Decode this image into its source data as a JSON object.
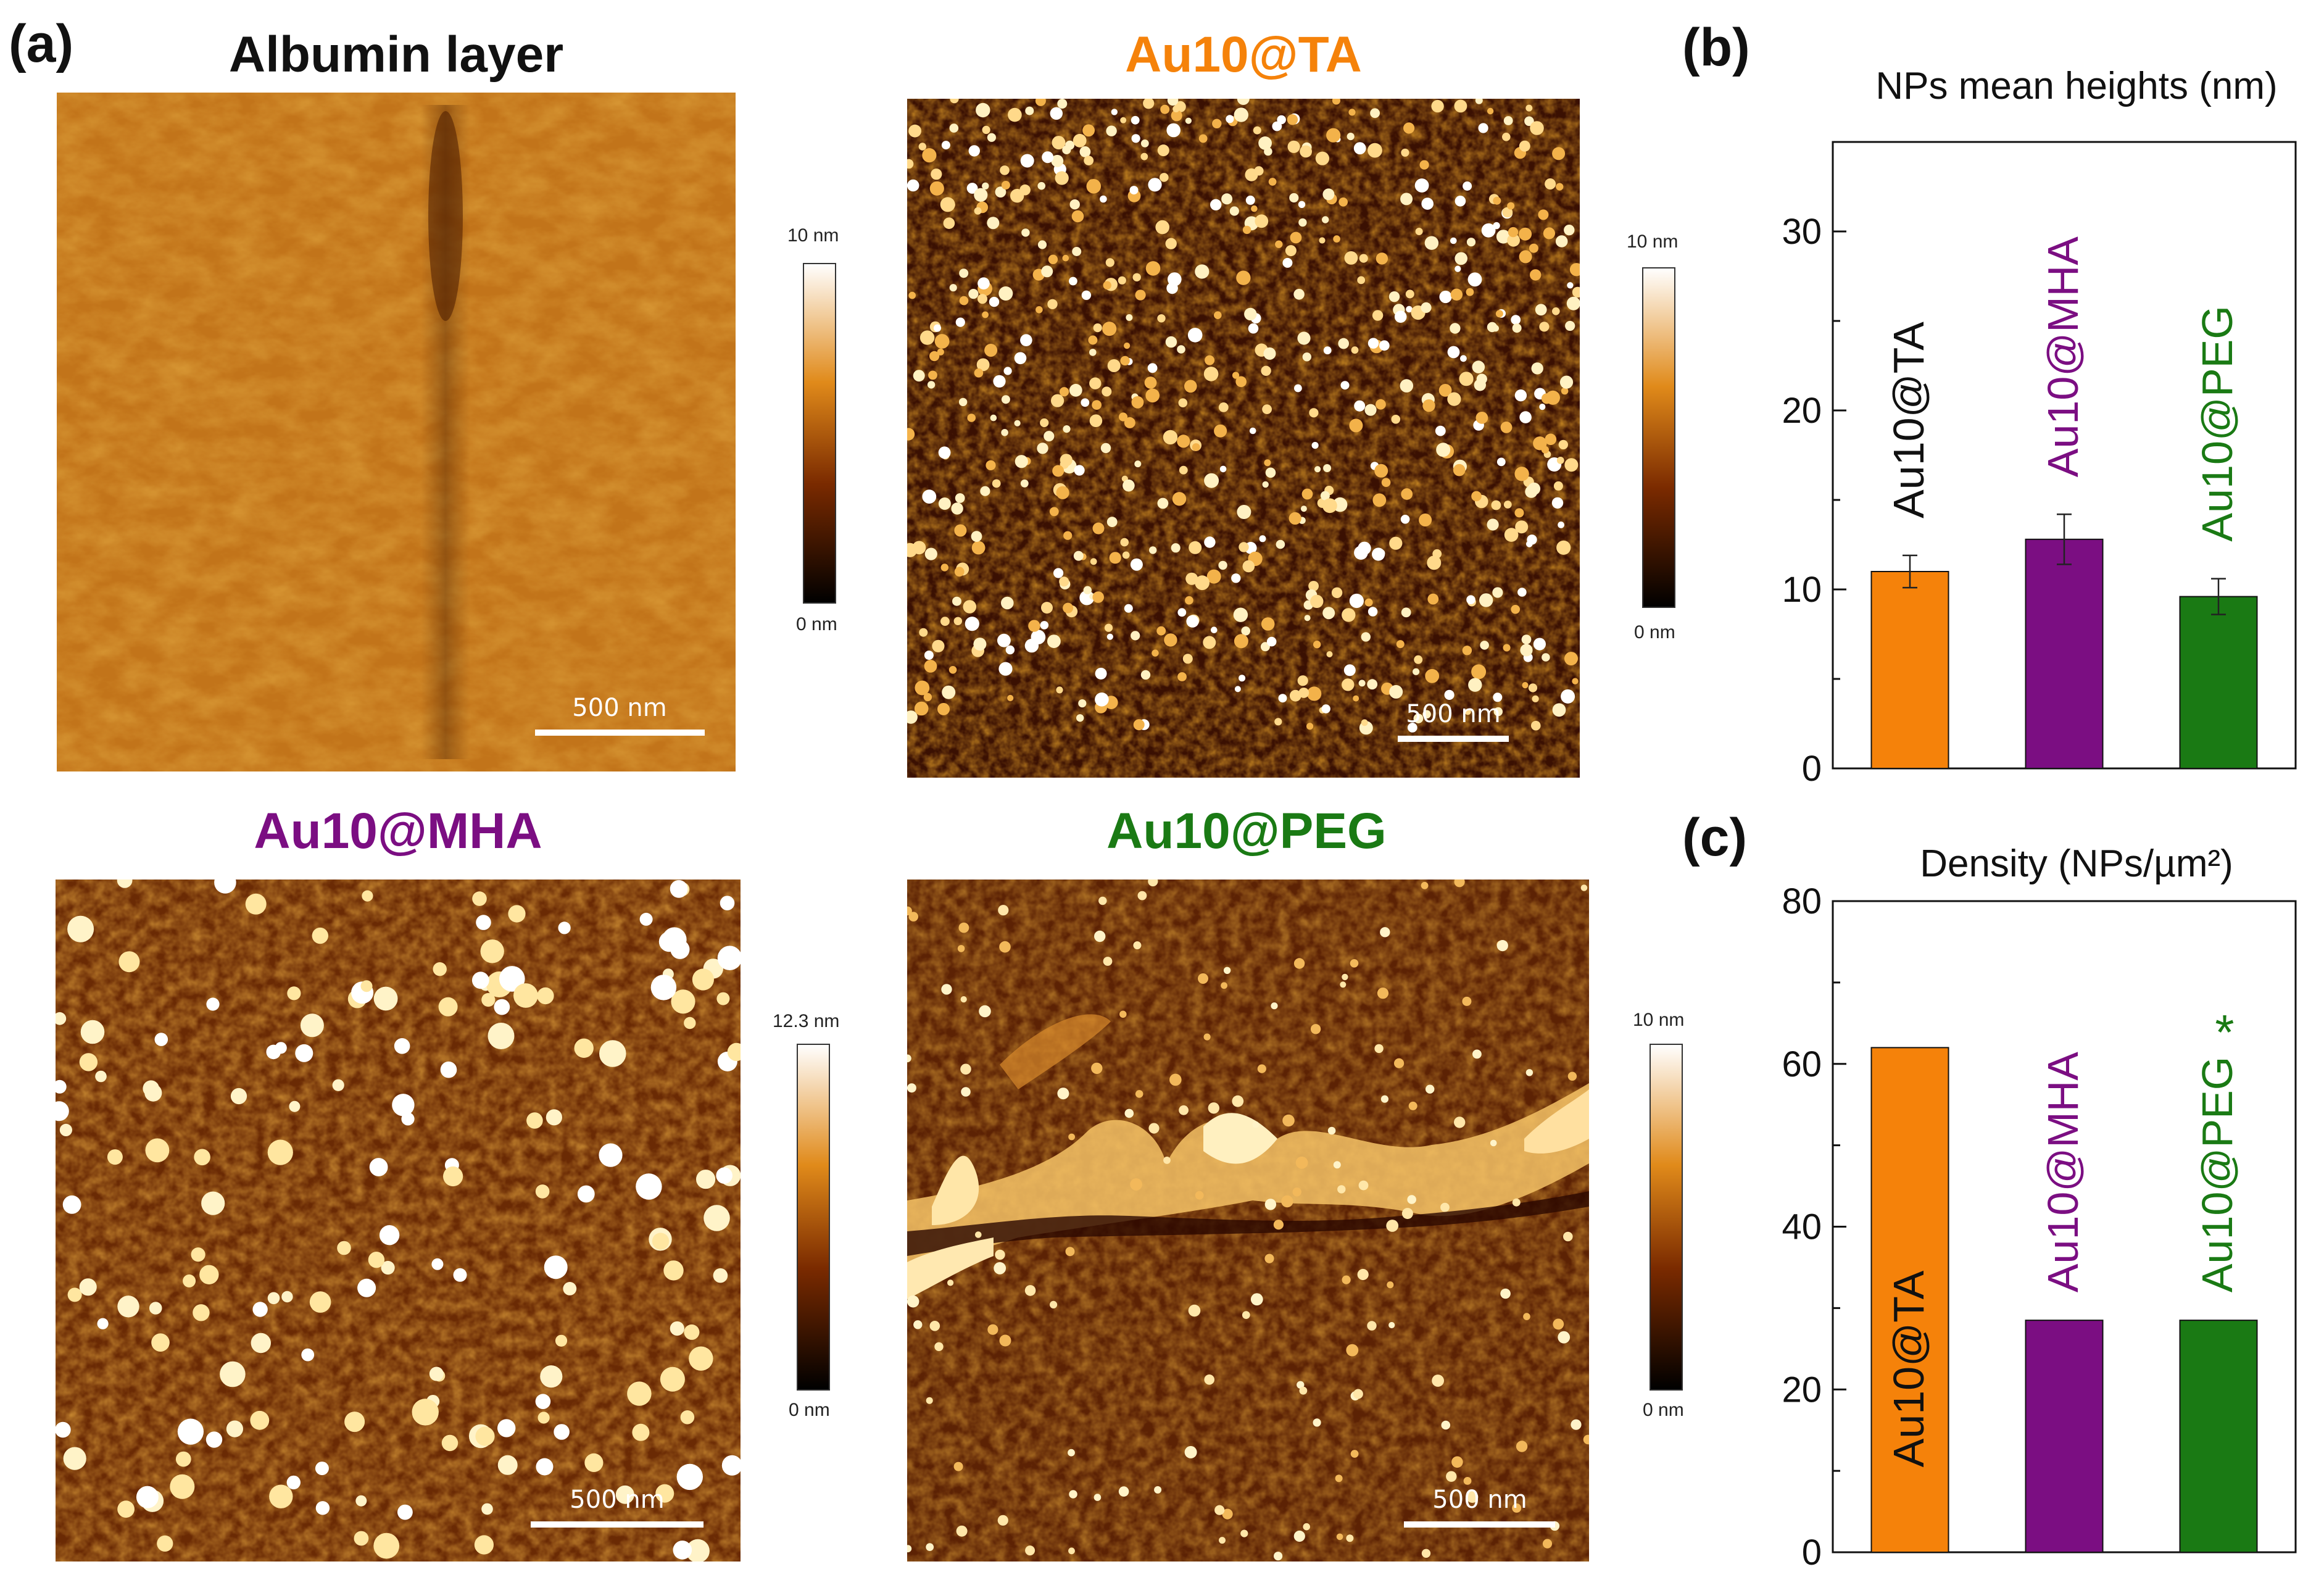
{
  "panels": {
    "a": "(a)",
    "b": "(b)",
    "c": "(c)"
  },
  "colors": {
    "ta": "#f5820a",
    "mha": "#7b0e82",
    "peg": "#1a7a14",
    "black": "#111111"
  },
  "afm_images": [
    {
      "id": "albumin",
      "title": "Albumin layer",
      "title_color": "#111111",
      "scale_bar": "500 nm",
      "colorbar_max": "10 nm",
      "colorbar_min": "0 nm"
    },
    {
      "id": "ta",
      "title": "Au10@TA",
      "title_color": "#f5820a",
      "scale_bar": "500 nm",
      "colorbar_max": "10 nm",
      "colorbar_min": "0 nm"
    },
    {
      "id": "mha",
      "title": "Au10@MHA",
      "title_color": "#7b0e82",
      "scale_bar": "500 nm",
      "colorbar_max": "12.3 nm",
      "colorbar_min": "0 nm"
    },
    {
      "id": "peg",
      "title": "Au10@PEG",
      "title_color": "#1a7a14",
      "scale_bar": "500 nm",
      "colorbar_max": "10 nm",
      "colorbar_min": "0 nm"
    }
  ],
  "chart_data": [
    {
      "type": "bar",
      "title": "NPs mean heights (nm)",
      "categories": [
        "Au10@TA",
        "Au10@MHA",
        "Au10@PEG"
      ],
      "category_labels": [
        "Au10@TA",
        "Au10@MHA",
        "Au10@PEG"
      ],
      "values": [
        11.0,
        12.8,
        9.6
      ],
      "errors": [
        0.9,
        1.4,
        1.0
      ],
      "colors": [
        "#f5820a",
        "#7b0e82",
        "#1a7a14"
      ],
      "label_colors": [
        "#111111",
        "#7b0e82",
        "#1a7a14"
      ],
      "ylim": [
        0,
        35
      ],
      "yticks": [
        0,
        10,
        20,
        30
      ],
      "xlabel": "",
      "ylabel": ""
    },
    {
      "type": "bar",
      "title": "Density (NPs/µm²)",
      "categories": [
        "Au10@TA",
        "Au10@MHA",
        "Au10@PEG"
      ],
      "category_labels": [
        "Au10@TA",
        "Au10@MHA",
        "Au10@PEG"
      ],
      "annotation": "*",
      "values": [
        62,
        28.5,
        28.5
      ],
      "colors": [
        "#f5820a",
        "#7b0e82",
        "#1a7a14"
      ],
      "label_colors": [
        "#111111",
        "#7b0e82",
        "#1a7a14"
      ],
      "ylim": [
        0,
        80
      ],
      "yticks": [
        0,
        20,
        40,
        60,
        80
      ],
      "xlabel": "",
      "ylabel": ""
    }
  ]
}
